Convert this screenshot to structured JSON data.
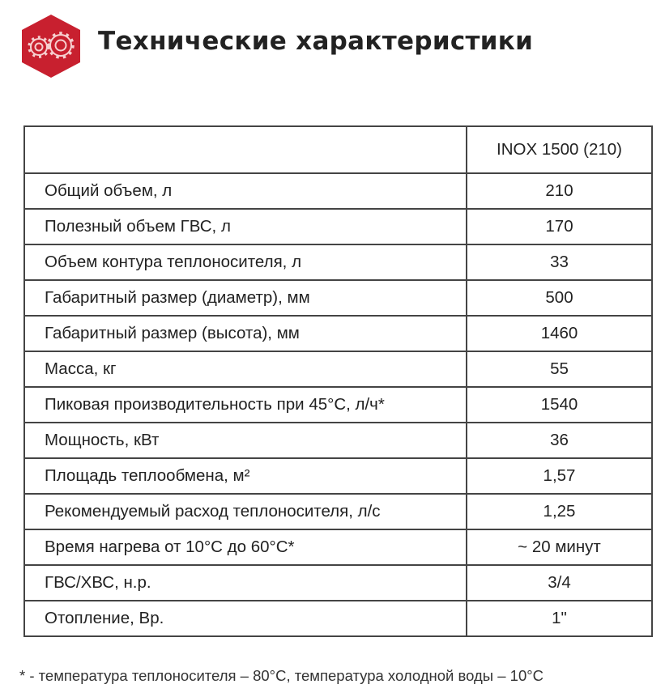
{
  "header": {
    "title": "Технические характеристики",
    "logo_icon": "gears-hexagon-icon",
    "brand_color": "#c8202f"
  },
  "table": {
    "column_header": "INOX  1500 (210)",
    "rows": [
      {
        "name": "Общий объем, л",
        "value": "210"
      },
      {
        "name": "Полезный объем ГВС, л",
        "value": "170"
      },
      {
        "name": "Объем контура теплоносителя, л",
        "value": "33"
      },
      {
        "name": "Габаритный размер (диаметр), мм",
        "value": "500"
      },
      {
        "name": "Габаритный размер (высота), мм",
        "value": "1460"
      },
      {
        "name": "Масса, кг",
        "value": "55"
      },
      {
        "name": "Пиковая производительность при 45°C, л/ч*",
        "value": "1540"
      },
      {
        "name": "Мощность, кВт",
        "value": "36"
      },
      {
        "name": "Площадь теплообмена, м²",
        "value": "1,57"
      },
      {
        "name": "Рекомендуемый расход теплоносителя, л/с",
        "value": "1,25"
      },
      {
        "name": "Время нагрева от 10°C до 60°C*",
        "value": "~ 20 минут"
      },
      {
        "name": "ГВС/ХВС, н.р.",
        "value": "3/4"
      },
      {
        "name": "Отопление, Вр.",
        "value": "1\""
      }
    ]
  },
  "footnote": "* - температура теплоносителя – 80°C, температура холодной воды – 10°C"
}
